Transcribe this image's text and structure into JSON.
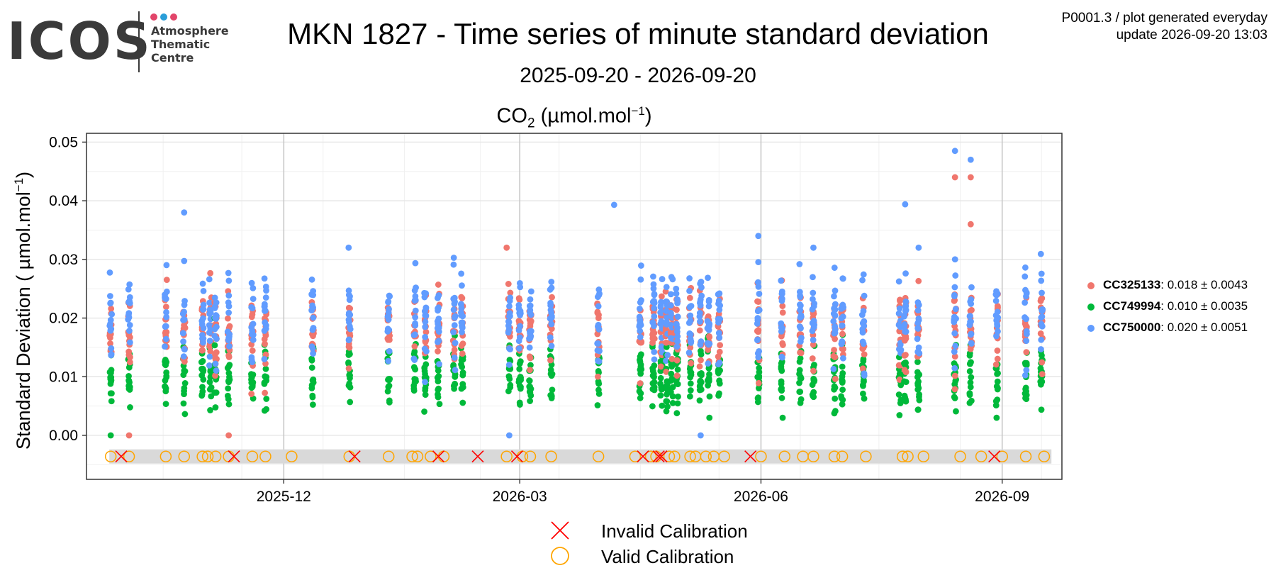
{
  "logo": {
    "wordmark": "ICOS",
    "tagline": [
      "Atmosphere",
      "Thematic",
      "Centre"
    ],
    "dot_colors": [
      "#e2456a",
      "#2a9ed8",
      "#e2456a"
    ]
  },
  "header": {
    "title": "MKN 1827 - Time series of minute standard deviation",
    "subtitle": "2025-09-20 - 2026-09-20",
    "plot_title_main": "CO",
    "plot_title_sub": "2",
    "plot_title_unit_open": " (µmol.mol",
    "plot_title_unit_sup": "−1",
    "plot_title_unit_close": ")",
    "meta_line1": "P0001.3 / plot generated everyday",
    "meta_line2": "update  2026-09-20 13:03"
  },
  "legend": {
    "instruments": [
      {
        "id": "CC325133",
        "stats": ": 0.018 ± 0.0043",
        "color": "#f0766d"
      },
      {
        "id": "CC749994",
        "stats": ": 0.010 ± 0.0035",
        "color": "#00b93a"
      },
      {
        "id": "CC750000",
        "stats": ": 0.020 ± 0.0051",
        "color": "#619cff"
      }
    ],
    "calibration": [
      {
        "label": "Invalid Calibration",
        "symbol": "cross",
        "color": "#ff0000"
      },
      {
        "label": "Valid Calibration",
        "symbol": "circle",
        "color": "#ffa500"
      }
    ]
  },
  "chart_data": {
    "type": "scatter",
    "ylabel_main": "Standard Deviation ( µmol.mol",
    "ylabel_sup": "−1",
    "ylabel_close": ")",
    "x_range": [
      "2025-09-20",
      "2026-09-20"
    ],
    "ylim": [
      -0.0075,
      0.0515
    ],
    "y_ticks": [
      0.0,
      0.01,
      0.02,
      0.03,
      0.04,
      0.05
    ],
    "y_tick_labels": [
      "0.00",
      "0.01",
      "0.02",
      "0.03",
      "0.04",
      "0.05"
    ],
    "x_ticks": [
      "2025-12-01",
      "2026-03-01",
      "2026-06-01",
      "2026-09-01"
    ],
    "x_tick_labels": [
      "2025-12",
      "2026-03",
      "2026-06",
      "2026-09"
    ],
    "grid": true,
    "legend_position": "right",
    "calibration_band_y": -0.0036,
    "series": [
      {
        "name": "CC749994",
        "color": "#00b93a",
        "mean": 0.01,
        "sd": 0.0035
      },
      {
        "name": "CC325133",
        "color": "#f0766d",
        "mean": 0.018,
        "sd": 0.0043
      },
      {
        "name": "CC750000",
        "color": "#619cff",
        "mean": 0.02,
        "sd": 0.0051
      }
    ],
    "measurement_dates": [
      "2025-09-26",
      "2025-10-03",
      "2025-10-17",
      "2025-10-24",
      "2025-10-31",
      "2025-11-03",
      "2025-11-05",
      "2025-11-10",
      "2025-11-19",
      "2025-11-24",
      "2025-12-12",
      "2025-12-26",
      "2026-01-10",
      "2026-01-20",
      "2026-01-24",
      "2026-01-29",
      "2026-02-04",
      "2026-02-07",
      "2026-02-25",
      "2026-03-01",
      "2026-03-05",
      "2026-03-13",
      "2026-03-31",
      "2026-04-16",
      "2026-04-21",
      "2026-04-24",
      "2026-04-26",
      "2026-04-28",
      "2026-04-30",
      "2026-05-05",
      "2026-05-09",
      "2026-05-12",
      "2026-05-16",
      "2026-05-31",
      "2026-06-09",
      "2026-06-16",
      "2026-06-21",
      "2026-06-29",
      "2026-07-02",
      "2026-07-10",
      "2026-07-24",
      "2026-07-26",
      "2026-07-31",
      "2026-08-14",
      "2026-08-20",
      "2026-08-30",
      "2026-09-10",
      "2026-09-16"
    ],
    "maxima": [
      {
        "date": "2025-10-24",
        "series": "CC750000",
        "value": 0.038
      },
      {
        "date": "2026-04-06",
        "series": "CC750000",
        "value": 0.0393
      },
      {
        "date": "2026-07-26",
        "series": "CC750000",
        "value": 0.0394
      },
      {
        "date": "2026-08-14",
        "series": "CC750000",
        "value": 0.0485
      },
      {
        "date": "2026-08-14",
        "series": "CC325133",
        "value": 0.044
      },
      {
        "date": "2026-08-20",
        "series": "CC750000",
        "value": 0.047
      },
      {
        "date": "2026-08-20",
        "series": "CC325133",
        "value": 0.044
      },
      {
        "date": "2026-08-20",
        "series": "CC325133",
        "value": 0.036
      },
      {
        "date": "2026-02-24",
        "series": "CC325133",
        "value": 0.032
      },
      {
        "date": "2026-05-31",
        "series": "CC750000",
        "value": 0.034
      }
    ],
    "minima": [
      {
        "date": "2025-09-26",
        "series": "CC749994",
        "value": 0.0
      },
      {
        "date": "2025-10-03",
        "series": "CC325133",
        "value": 0.0
      },
      {
        "date": "2025-11-10",
        "series": "CC325133",
        "value": 0.0
      },
      {
        "date": "2026-02-25",
        "series": "CC750000",
        "value": 0.0
      },
      {
        "date": "2026-05-09",
        "series": "CC750000",
        "value": 0.0
      }
    ],
    "calibrations": {
      "valid": [
        "2025-09-26",
        "2025-10-03",
        "2025-10-17",
        "2025-10-24",
        "2025-10-31",
        "2025-11-02",
        "2025-11-05",
        "2025-11-10",
        "2025-11-19",
        "2025-11-24",
        "2025-12-04",
        "2025-12-26",
        "2026-01-10",
        "2026-01-19",
        "2026-01-21",
        "2026-01-26",
        "2026-01-31",
        "2026-02-24",
        "2026-03-02",
        "2026-03-05",
        "2026-03-13",
        "2026-03-31",
        "2026-04-14",
        "2026-04-20",
        "2026-04-22",
        "2026-04-27",
        "2026-04-29",
        "2026-05-05",
        "2026-05-07",
        "2026-05-11",
        "2026-05-14",
        "2026-05-18",
        "2026-06-01",
        "2026-06-10",
        "2026-06-17",
        "2026-06-21",
        "2026-06-29",
        "2026-07-02",
        "2026-07-11",
        "2026-07-25",
        "2026-07-27",
        "2026-08-02",
        "2026-08-16",
        "2026-08-24",
        "2026-09-01",
        "2026-09-10",
        "2026-09-17"
      ],
      "invalid": [
        "2025-09-30",
        "2025-11-12",
        "2025-12-28",
        "2026-01-29",
        "2026-02-13",
        "2026-02-28",
        "2026-04-17",
        "2026-04-23",
        "2026-04-24",
        "2026-05-28",
        "2026-08-29"
      ]
    }
  }
}
